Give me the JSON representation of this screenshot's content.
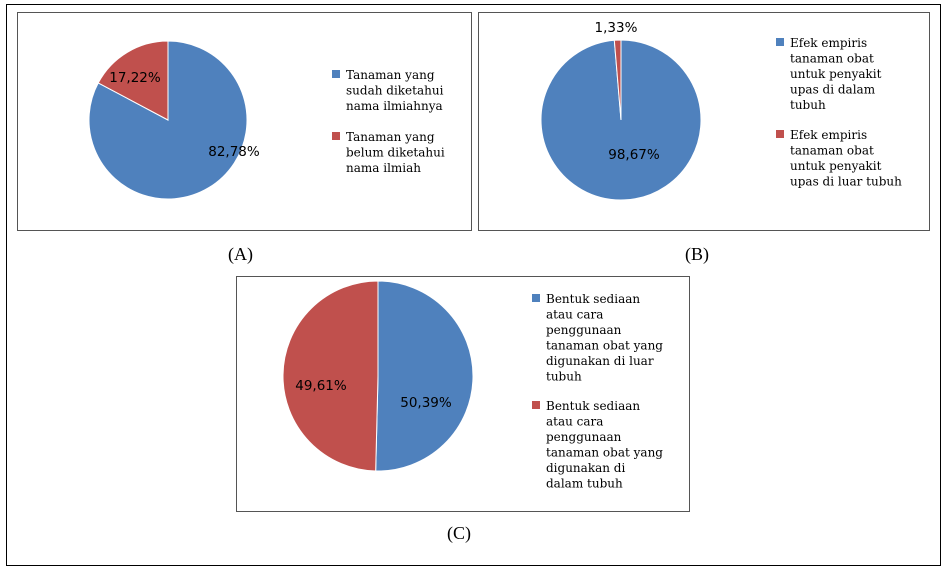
{
  "colors": {
    "blue": "#4f81bd",
    "red": "#c0504d"
  },
  "captions": {
    "a": "(A)",
    "b": "(B)",
    "c": "(C)"
  },
  "chart_data": [
    {
      "id": "a",
      "type": "pie",
      "slices": [
        {
          "label_lines": [
            "Tanaman yang",
            "sudah diketahui",
            "nama ilmiahnya"
          ],
          "value": 82.78,
          "display": "82,78%",
          "color": "#4f81bd"
        },
        {
          "label_lines": [
            "Tanaman yang",
            "belum diketahui",
            "nama ilmiah"
          ],
          "value": 17.22,
          "display": "17,22%",
          "color": "#c0504d"
        }
      ],
      "legend_position": "right"
    },
    {
      "id": "b",
      "type": "pie",
      "slices": [
        {
          "label_lines": [
            "Efek empiris",
            "tanaman obat",
            "untuk penyakit",
            "upas di dalam",
            "tubuh"
          ],
          "value": 98.67,
          "display": "98,67%",
          "color": "#4f81bd"
        },
        {
          "label_lines": [
            "Efek empiris",
            "tanaman obat",
            "untuk penyakit",
            "upas di luar tubuh"
          ],
          "value": 1.33,
          "display": "1,33%",
          "color": "#c0504d"
        }
      ],
      "legend_position": "right"
    },
    {
      "id": "c",
      "type": "pie",
      "slices": [
        {
          "label_lines": [
            "Bentuk sediaan",
            "atau cara",
            "penggunaan",
            "tanaman obat yang",
            "digunakan di luar",
            "tubuh"
          ],
          "value": 50.39,
          "display": "50,39%",
          "color": "#4f81bd"
        },
        {
          "label_lines": [
            "Bentuk sediaan",
            "atau cara",
            "penggunaan",
            "tanaman obat yang",
            "digunakan di",
            "dalam tubuh"
          ],
          "value": 49.61,
          "display": "49,61%",
          "color": "#c0504d"
        }
      ],
      "legend_position": "right"
    }
  ]
}
